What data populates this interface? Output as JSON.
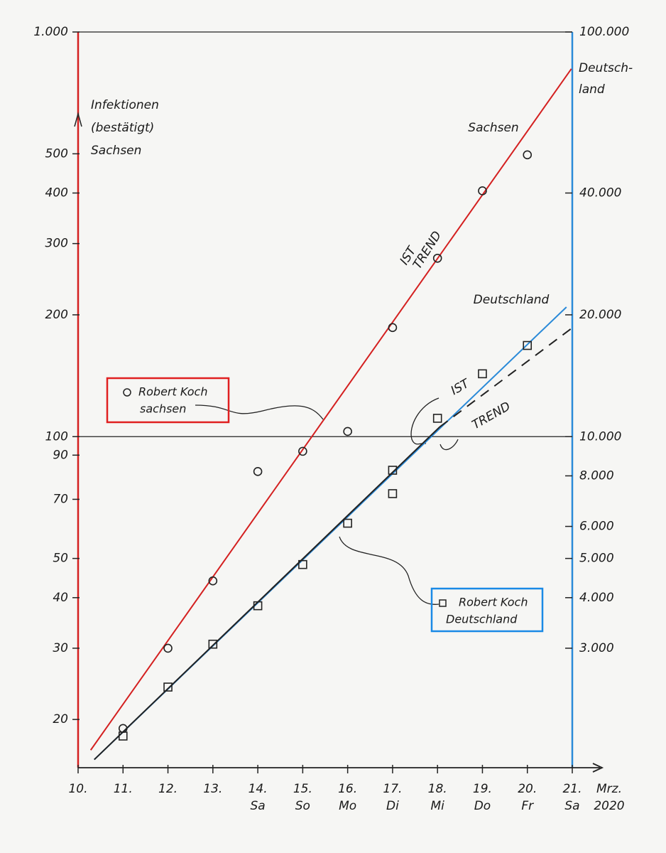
{
  "chart_data": {
    "type": "scatter",
    "y_label": [
      "Infektionen",
      "(bestätigt)",
      "Sachsen"
    ],
    "y2_label": [
      "Deutsch-",
      "land"
    ],
    "x_unit_label": [
      "Mrz.",
      "2020"
    ],
    "xlim": [
      10,
      21
    ],
    "xticks": [
      {
        "value": 10,
        "label": "10."
      },
      {
        "value": 11,
        "label": "11."
      },
      {
        "value": 12,
        "label": "12."
      },
      {
        "value": 13,
        "label": "13."
      },
      {
        "value": 14,
        "label": "14."
      },
      {
        "value": 15,
        "label": "15."
      },
      {
        "value": 16,
        "label": "16."
      },
      {
        "value": 17,
        "label": "17."
      },
      {
        "value": 18,
        "label": "18."
      },
      {
        "value": 19,
        "label": "19."
      },
      {
        "value": 20,
        "label": "20."
      },
      {
        "value": 21,
        "label": "21."
      }
    ],
    "weekday_labels": [
      null,
      null,
      null,
      null,
      "Sa",
      "So",
      "Mo",
      "Di",
      "Mi",
      "Do",
      "Fr",
      "Sa"
    ],
    "log_scale": true,
    "ylim": [
      15.2,
      1000
    ],
    "yticks": [
      {
        "value": 1000,
        "label": "1.000"
      },
      500,
      400,
      300,
      200,
      100,
      90,
      70,
      50,
      40,
      30,
      20
    ],
    "y2lim": [
      1520,
      100000
    ],
    "y2ticks": [
      {
        "value": 100000,
        "label": "100.000"
      },
      {
        "value": 40000,
        "label": "40.000"
      },
      {
        "value": 20000,
        "label": "20.000"
      },
      {
        "value": 10000,
        "label": "10.000"
      },
      {
        "value": 8000,
        "label": "8.000"
      },
      {
        "value": 6000,
        "label": "6.000"
      },
      {
        "value": 5000,
        "label": "5.000"
      },
      {
        "value": 4000,
        "label": "4.000"
      },
      {
        "value": 3000,
        "label": "3.000"
      }
    ],
    "grid_y": [
      1000,
      100
    ],
    "y_axis_color": "#d42020",
    "y2_axis_color": "#2a8ad8",
    "series": [
      {
        "marker": "circle",
        "color": "#222222",
        "x": [
          11,
          12,
          13,
          14,
          15,
          16,
          17,
          18,
          19,
          20
        ],
        "values": [
          19,
          30,
          44,
          82,
          92,
          103,
          186,
          276,
          405,
          497
        ]
      },
      {
        "marker": "square",
        "color": "#222222",
        "axis": "y2",
        "x": [
          11,
          12,
          13,
          14,
          15,
          16,
          17,
          17,
          18,
          19,
          20
        ],
        "values": [
          1820,
          2405,
          3070,
          3820,
          4830,
          6110,
          8260,
          7230,
          11100,
          14300,
          16800
        ]
      },
      {
        "marker": "line",
        "color": "#d42020",
        "x": [
          10.28,
          20.98
        ],
        "values": [
          16.8,
          811
        ]
      },
      {
        "marker": "line",
        "color": "#2a8ad8",
        "axis": "y2",
        "x": [
          10.36,
          20.87
        ],
        "values": [
          1592,
          20900
        ]
      },
      {
        "marker": "line",
        "color": "#222222",
        "axis": "y2",
        "x": [
          10.36,
          18.05
        ],
        "values": [
          1592,
          10570
        ]
      },
      {
        "marker": "line",
        "color": "#222222",
        "dashed": true,
        "axis": "y2",
        "x": [
          18.05,
          20.98
        ],
        "values": [
          10570,
          18500
        ]
      }
    ],
    "annotations": [
      "IST",
      "TREND",
      "Sachsen",
      "Deutschland",
      "IST",
      "TREND"
    ],
    "legend": [
      {
        "lines": [
          "Robert Koch",
          "sachsen"
        ],
        "color": "#e02020"
      },
      {
        "lines": [
          "Robert Koch",
          "Deutschland"
        ],
        "color": "#1a8ae6"
      }
    ]
  }
}
